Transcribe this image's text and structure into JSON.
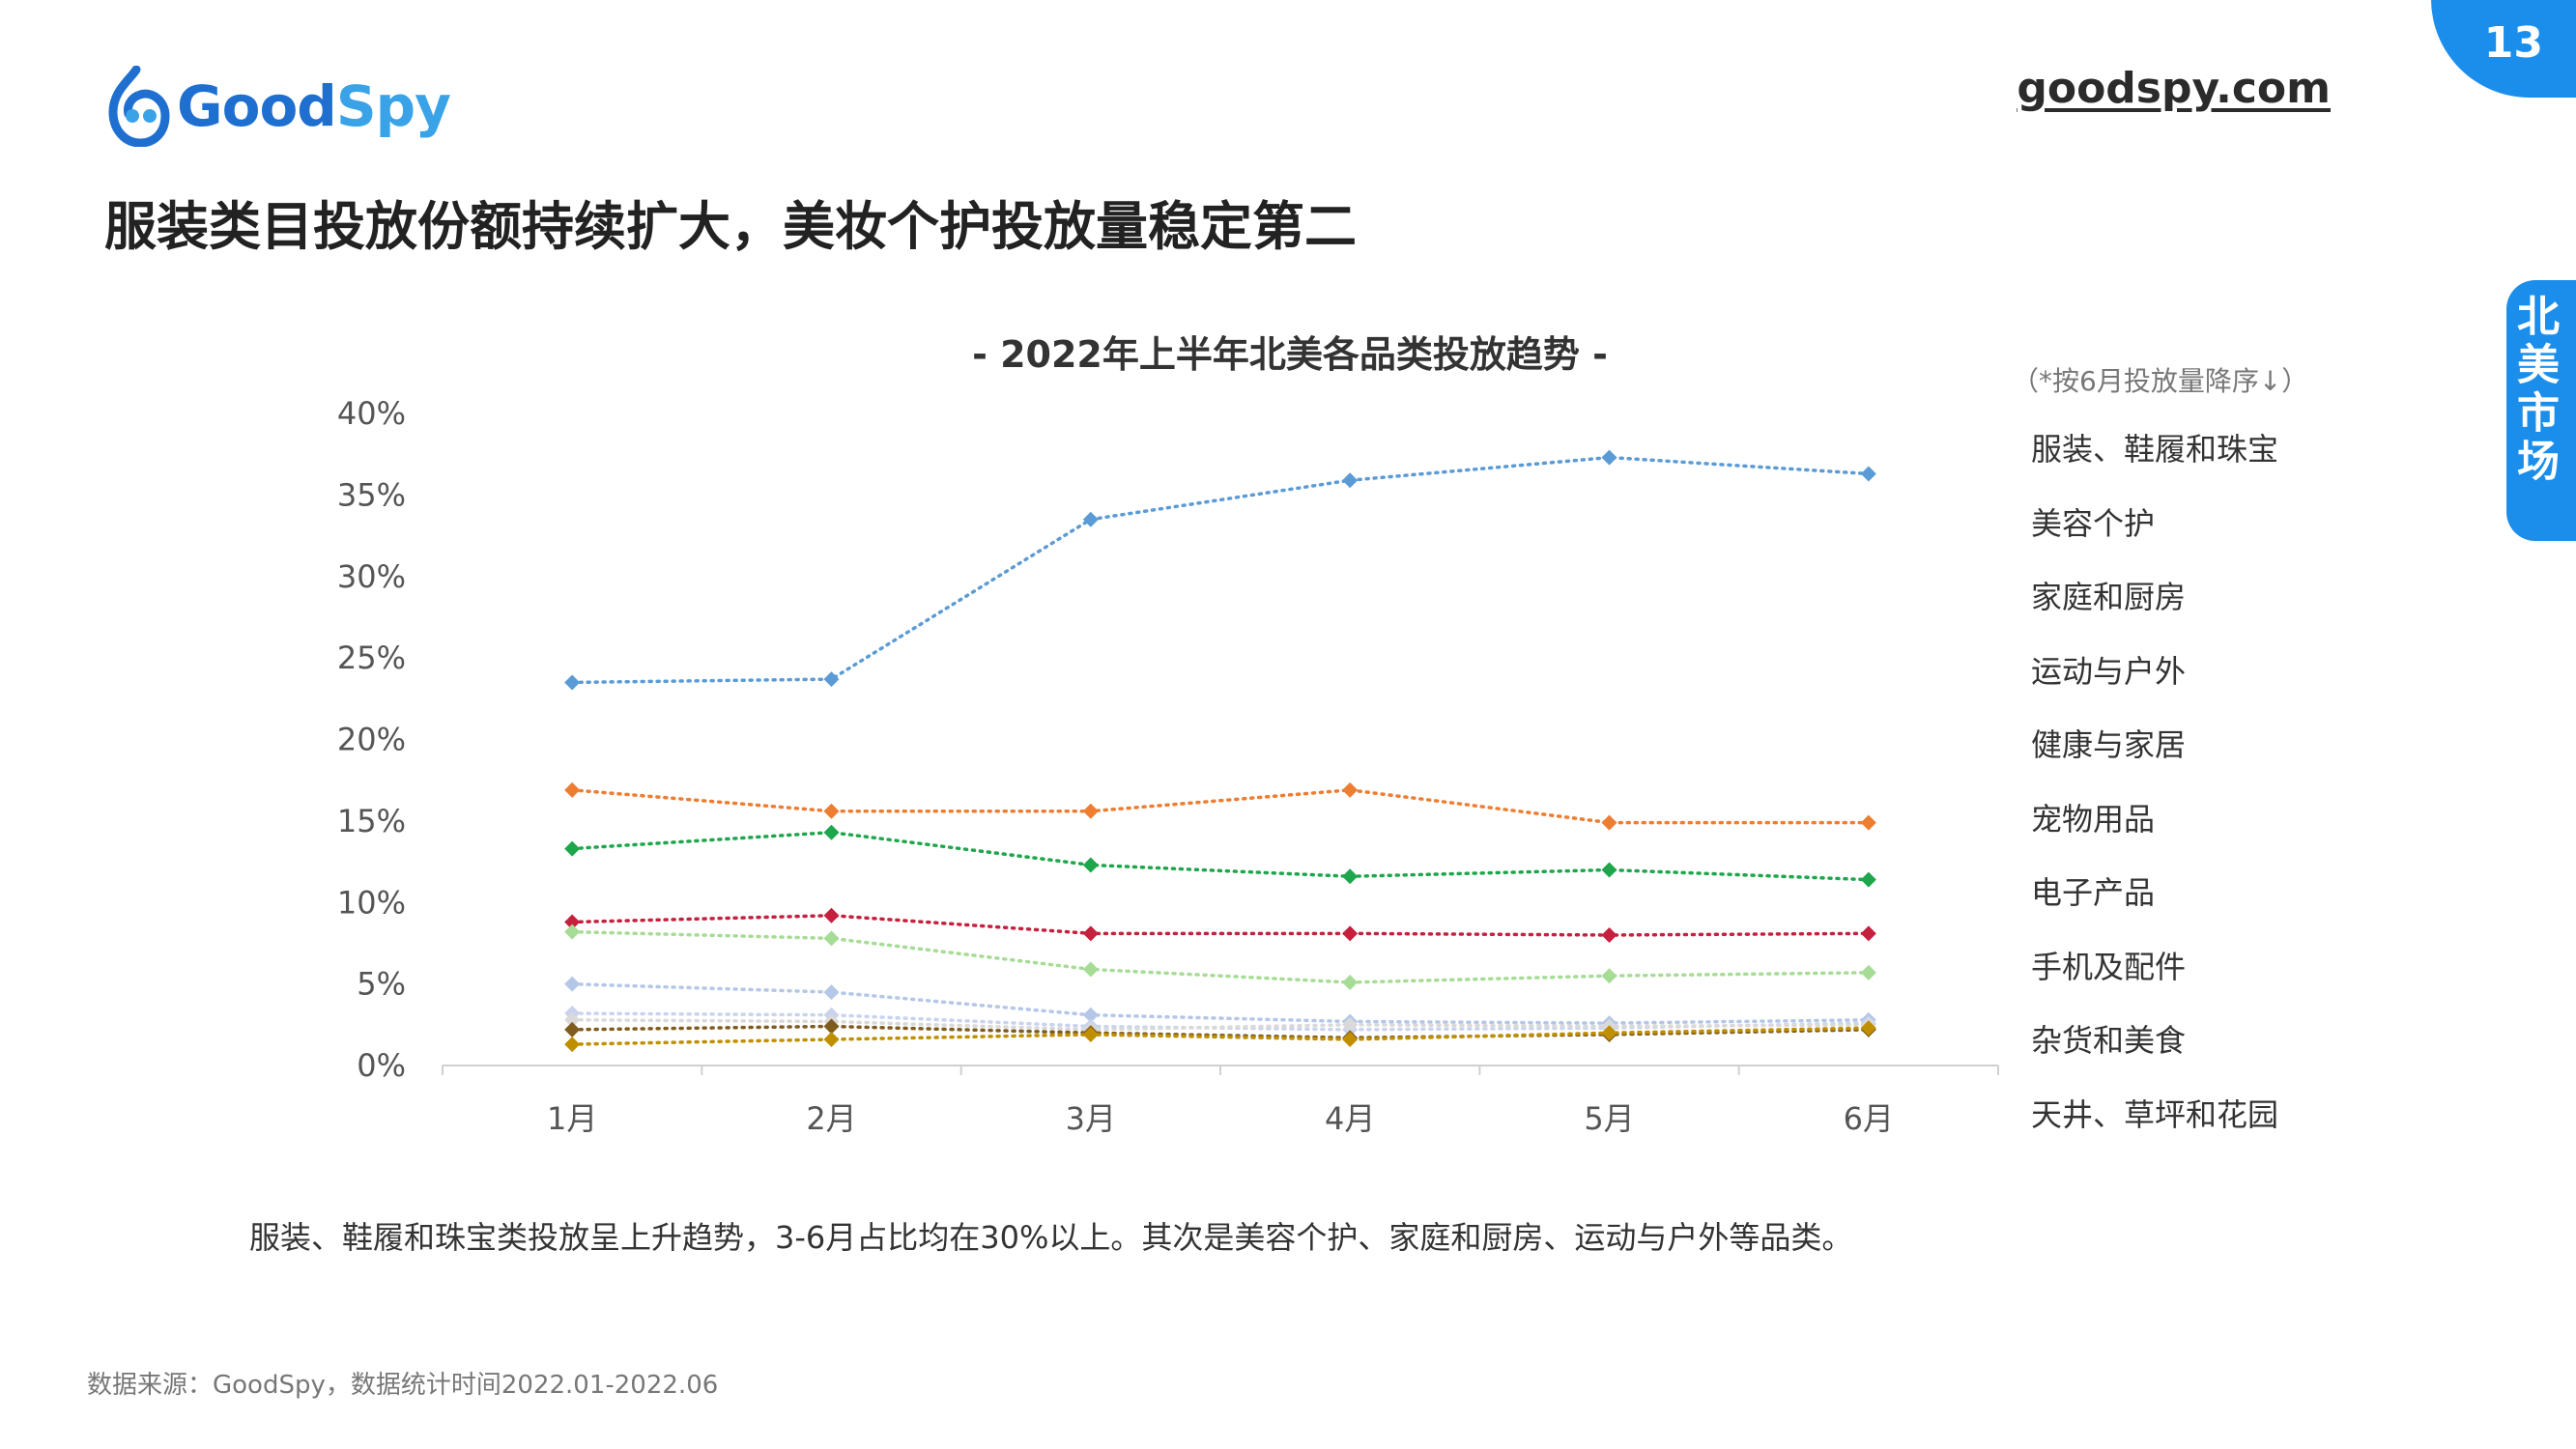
{
  "logo": {
    "part1": "Good",
    "part2": "Spy"
  },
  "site_url": "goodspy.com",
  "page_number": "13",
  "side_tab": "北美市场",
  "headline": "服装类目投放份额持续扩大，美妆个护投放量稳定第二",
  "legend_note": "（*按6月投放量降序↓）",
  "summary": "服装、鞋履和珠宝类投放呈上升趋势，3-6月占比均在30%以上。其次是美容个护、家庭和厨房、运动与户外等品类。",
  "source": "数据来源：GoodSpy，数据统计时间2022.01-2022.06",
  "colors": {
    "brand": "#1b8eec"
  },
  "chart_data": {
    "type": "line",
    "title": "- 2022年上半年北美各品类投放趋势 -",
    "categories": [
      "1月",
      "2月",
      "3月",
      "4月",
      "5月",
      "6月"
    ],
    "ylim": [
      0,
      40
    ],
    "yticks": [
      "0%",
      "5%",
      "10%",
      "15%",
      "20%",
      "25%",
      "30%",
      "35%",
      "40%"
    ],
    "ytick_values": [
      0,
      5,
      10,
      15,
      20,
      25,
      30,
      35,
      40
    ],
    "line_style": "dotted",
    "marker": "diamond",
    "grid": false,
    "legend_position": "right",
    "series": [
      {
        "name": "服装、鞋履和珠宝",
        "color": "#5b9bd5",
        "values": [
          23.5,
          23.7,
          33.5,
          35.9,
          37.3,
          36.3
        ]
      },
      {
        "name": "美容个护",
        "color": "#ed7d31",
        "values": [
          16.9,
          15.6,
          15.6,
          16.9,
          14.9,
          14.9
        ]
      },
      {
        "name": "家庭和厨房",
        "color": "#1ea64c",
        "values": [
          13.3,
          14.3,
          12.3,
          11.6,
          12.0,
          11.4
        ]
      },
      {
        "name": "运动与户外",
        "color": "#c5203e",
        "values": [
          8.8,
          9.2,
          8.1,
          8.1,
          8.0,
          8.1
        ]
      },
      {
        "name": "健康与家居",
        "color": "#a6dc95",
        "values": [
          8.2,
          7.8,
          5.9,
          5.1,
          5.5,
          5.7
        ]
      },
      {
        "name": "宠物用品",
        "color": "#b4c7e7",
        "values": [
          5.0,
          4.5,
          3.1,
          2.7,
          2.6,
          2.8
        ]
      },
      {
        "name": "电子产品",
        "color": "#c9d3ee",
        "values": [
          3.2,
          3.1,
          2.4,
          2.2,
          2.3,
          2.6
        ]
      },
      {
        "name": "手机及配件",
        "color": "#d9d9d9",
        "values": [
          2.8,
          2.7,
          2.2,
          2.5,
          2.4,
          2.5
        ]
      },
      {
        "name": "杂货和美食",
        "color": "#7f5c1e",
        "values": [
          2.2,
          2.4,
          2.0,
          1.7,
          1.9,
          2.2
        ]
      },
      {
        "name": "天井、草坪和花园",
        "color": "#bf8f00",
        "values": [
          1.3,
          1.6,
          1.9,
          1.6,
          2.0,
          2.3
        ]
      }
    ]
  }
}
